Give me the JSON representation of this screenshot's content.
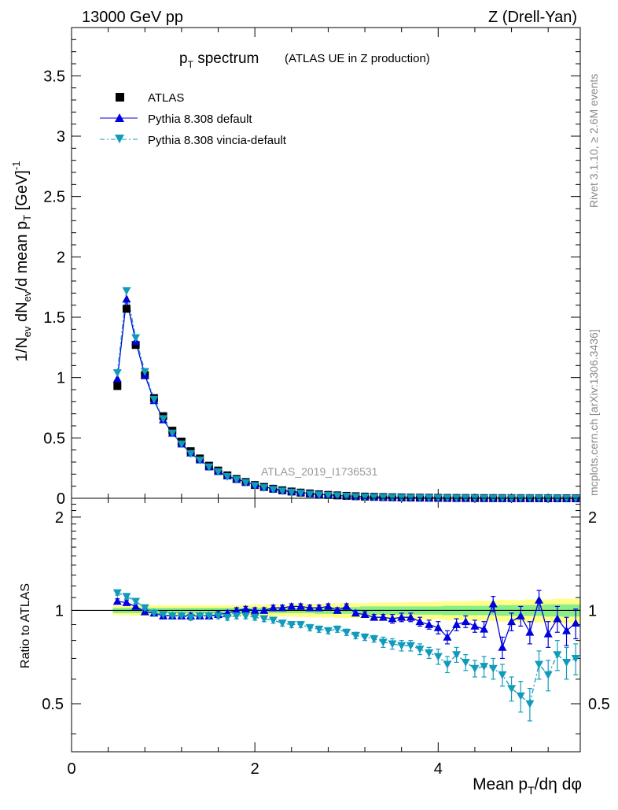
{
  "header": {
    "left": "13000 GeV pp",
    "right": "Z (Drell-Yan)"
  },
  "side": {
    "rivet": "Rivet 3.1.10, ≥ 2.6M events",
    "mcplots": "mcplots.cern.ch [arXiv:1306.3436]"
  },
  "colors": {
    "atlas": "#000000",
    "default": "#0000dd",
    "vincia": "#119bbb",
    "band_outer": "#ffff88",
    "band_inner": "#88ee88"
  },
  "chart_data": [
    {
      "type": "scatter",
      "title_main": "p",
      "title_sub": "T",
      "title_rest": " spectrum",
      "title_paren": "(ATLAS UE in Z production)",
      "watermark": "ATLAS_2019_I1736531",
      "ylabel": "1/N_ev dN_ev/d mean p_T [GeV]^-1",
      "ylim": [
        0,
        3.9
      ],
      "xlim": [
        0,
        5.55
      ],
      "yticks": [
        "0",
        "0.5",
        "1",
        "1.5",
        "2",
        "2.5",
        "3",
        "3.5"
      ],
      "legend": [
        {
          "label": "ATLAS",
          "marker": "square"
        },
        {
          "label": "Pythia 8.308 default",
          "marker": "triangle-up"
        },
        {
          "label": "Pythia 8.308 vincia-default",
          "marker": "triangle-down"
        }
      ],
      "x": [
        0.5,
        0.6,
        0.7,
        0.8,
        0.9,
        1.0,
        1.1,
        1.2,
        1.3,
        1.4,
        1.5,
        1.6,
        1.7,
        1.8,
        1.9,
        2.0,
        2.1,
        2.2,
        2.3,
        2.4,
        2.5,
        2.6,
        2.7,
        2.8,
        2.9,
        3.0,
        3.1,
        3.2,
        3.3,
        3.4,
        3.5,
        3.6,
        3.7,
        3.8,
        3.9,
        4.0,
        4.1,
        4.2,
        4.3,
        4.4,
        4.5,
        4.6,
        4.7,
        4.8,
        4.9,
        5.0,
        5.1,
        5.2,
        5.3,
        5.4,
        5.5
      ],
      "series": [
        {
          "name": "ATLAS",
          "values": [
            0.93,
            1.57,
            1.27,
            1.02,
            0.83,
            0.68,
            0.56,
            0.47,
            0.39,
            0.33,
            0.27,
            0.23,
            0.19,
            0.16,
            0.135,
            0.11,
            0.094,
            0.079,
            0.066,
            0.056,
            0.047,
            0.04,
            0.033,
            0.028,
            0.024,
            0.02,
            0.017,
            0.014,
            0.012,
            0.01,
            0.0085,
            0.0072,
            0.006,
            0.0051,
            0.0043,
            0.0036,
            0.003,
            0.0025,
            0.0021,
            0.0018,
            0.0015,
            0.0013,
            0.0011,
            0.0009,
            0.0008,
            0.0007,
            0.0006,
            0.0005,
            0.0004,
            0.00035,
            0.0003
          ]
        },
        {
          "name": "Pythia 8.308 default",
          "values": [
            0.99,
            1.65,
            1.3,
            1.02,
            0.81,
            0.65,
            0.54,
            0.45,
            0.375,
            0.318,
            0.26,
            0.222,
            0.185,
            0.16,
            0.135,
            0.11,
            0.094,
            0.08,
            0.067,
            0.057,
            0.048,
            0.04,
            0.033,
            0.028,
            0.024,
            0.019,
            0.016,
            0.013,
            0.011,
            0.0095,
            0.008,
            0.0068,
            0.0055,
            0.0047,
            0.0038,
            0.0033,
            0.0028,
            0.0023,
            0.0019,
            0.0016,
            0.0013,
            0.0014,
            0.0008,
            0.0008,
            0.0007,
            0.0006,
            0.0006,
            0.0004,
            0.0004,
            0.0003,
            0.0003
          ]
        },
        {
          "name": "Pythia 8.308 vincia-default",
          "values": [
            1.04,
            1.72,
            1.33,
            1.05,
            0.82,
            0.66,
            0.54,
            0.45,
            0.37,
            0.316,
            0.26,
            0.22,
            0.18,
            0.155,
            0.13,
            0.105,
            0.088,
            0.073,
            0.06,
            0.05,
            0.042,
            0.034,
            0.028,
            0.024,
            0.021,
            0.017,
            0.014,
            0.011,
            0.0096,
            0.008,
            0.0068,
            0.0056,
            0.0046,
            0.0038,
            0.0031,
            0.0026,
            0.0022,
            0.0017,
            0.0014,
            0.0011,
            0.0009,
            0.0009,
            0.0007,
            0.0005,
            0.0004,
            0.0004,
            0.0004,
            0.0003,
            0.0003,
            0.0002,
            0.0002
          ]
        }
      ]
    },
    {
      "type": "scatter",
      "ylabel": "Ratio to ATLAS",
      "xlabel": "Mean p_T/dη dφ",
      "ylim": [
        0.35,
        2.3
      ],
      "xlim": [
        0,
        5.55
      ],
      "xticks": [
        "0",
        "2",
        "4"
      ],
      "yticks_left": [
        "0.5",
        "1",
        "2"
      ],
      "yticks_right": [
        "0.5",
        "1",
        "2"
      ],
      "x": [
        0.5,
        0.6,
        0.7,
        0.8,
        0.9,
        1.0,
        1.1,
        1.2,
        1.3,
        1.4,
        1.5,
        1.6,
        1.7,
        1.8,
        1.9,
        2.0,
        2.1,
        2.2,
        2.3,
        2.4,
        2.5,
        2.6,
        2.7,
        2.8,
        2.9,
        3.0,
        3.1,
        3.2,
        3.3,
        3.4,
        3.5,
        3.6,
        3.7,
        3.8,
        3.9,
        4.0,
        4.1,
        4.2,
        4.3,
        4.4,
        4.5,
        4.6,
        4.7,
        4.8,
        4.9,
        5.0,
        5.1,
        5.2,
        5.3,
        5.4,
        5.5
      ],
      "band_inner_halfwidth": [
        0.02,
        0.02,
        0.02,
        0.02,
        0.02,
        0.02,
        0.02,
        0.02,
        0.02,
        0.02,
        0.02,
        0.02,
        0.02,
        0.02,
        0.02,
        0.02,
        0.02,
        0.02,
        0.02,
        0.02,
        0.02,
        0.02,
        0.025,
        0.025,
        0.025,
        0.025,
        0.025,
        0.03,
        0.03,
        0.03,
        0.03,
        0.03,
        0.03,
        0.03,
        0.03,
        0.03,
        0.035,
        0.035,
        0.035,
        0.035,
        0.035,
        0.035,
        0.04,
        0.04,
        0.04,
        0.04,
        0.04,
        0.045,
        0.045,
        0.045,
        0.045
      ],
      "band_outer_halfwidth": [
        0.035,
        0.035,
        0.04,
        0.04,
        0.04,
        0.04,
        0.04,
        0.04,
        0.04,
        0.04,
        0.04,
        0.04,
        0.04,
        0.04,
        0.04,
        0.045,
        0.045,
        0.045,
        0.045,
        0.045,
        0.05,
        0.05,
        0.05,
        0.05,
        0.055,
        0.055,
        0.055,
        0.055,
        0.06,
        0.06,
        0.06,
        0.06,
        0.065,
        0.065,
        0.065,
        0.065,
        0.07,
        0.07,
        0.07,
        0.075,
        0.075,
        0.075,
        0.08,
        0.08,
        0.08,
        0.085,
        0.085,
        0.085,
        0.09,
        0.09,
        0.09
      ],
      "series": [
        {
          "name": "Pythia 8.308 default",
          "values": [
            1.07,
            1.06,
            1.03,
            0.99,
            0.98,
            0.96,
            0.96,
            0.96,
            0.96,
            0.96,
            0.96,
            0.97,
            0.98,
            1.0,
            1.01,
            1.0,
            1.0,
            1.02,
            1.02,
            1.03,
            1.03,
            1.02,
            1.02,
            1.03,
            1.0,
            1.03,
            0.98,
            0.97,
            0.95,
            0.95,
            0.94,
            0.95,
            0.95,
            0.92,
            0.9,
            0.88,
            0.82,
            0.9,
            0.92,
            0.89,
            0.87,
            1.05,
            0.76,
            0.92,
            0.96,
            0.85,
            1.08,
            0.84,
            0.94,
            0.86,
            0.91
          ],
          "errors": [
            0.02,
            0.02,
            0.02,
            0.02,
            0.02,
            0.02,
            0.02,
            0.02,
            0.02,
            0.02,
            0.02,
            0.02,
            0.02,
            0.02,
            0.02,
            0.02,
            0.02,
            0.02,
            0.02,
            0.02,
            0.02,
            0.02,
            0.02,
            0.02,
            0.02,
            0.02,
            0.02,
            0.02,
            0.02,
            0.02,
            0.03,
            0.03,
            0.03,
            0.03,
            0.03,
            0.04,
            0.04,
            0.04,
            0.04,
            0.04,
            0.05,
            0.06,
            0.06,
            0.06,
            0.07,
            0.07,
            0.08,
            0.08,
            0.09,
            0.09,
            0.1
          ]
        },
        {
          "name": "Pythia 8.308 vincia-default",
          "values": [
            1.14,
            1.11,
            1.07,
            1.02,
            0.98,
            0.97,
            0.96,
            0.96,
            0.95,
            0.96,
            0.96,
            0.96,
            0.95,
            0.96,
            0.96,
            0.95,
            0.94,
            0.93,
            0.91,
            0.9,
            0.9,
            0.88,
            0.87,
            0.86,
            0.87,
            0.85,
            0.83,
            0.82,
            0.81,
            0.79,
            0.78,
            0.77,
            0.77,
            0.75,
            0.73,
            0.71,
            0.67,
            0.72,
            0.68,
            0.65,
            0.66,
            0.65,
            0.62,
            0.56,
            0.53,
            0.5,
            0.67,
            0.62,
            0.72,
            0.68,
            0.7
          ],
          "errors": [
            0.02,
            0.02,
            0.02,
            0.02,
            0.02,
            0.02,
            0.02,
            0.02,
            0.02,
            0.02,
            0.02,
            0.02,
            0.02,
            0.02,
            0.02,
            0.02,
            0.02,
            0.02,
            0.02,
            0.02,
            0.02,
            0.02,
            0.02,
            0.02,
            0.02,
            0.02,
            0.02,
            0.02,
            0.02,
            0.03,
            0.03,
            0.03,
            0.03,
            0.03,
            0.03,
            0.04,
            0.04,
            0.04,
            0.04,
            0.04,
            0.05,
            0.05,
            0.05,
            0.05,
            0.06,
            0.06,
            0.07,
            0.07,
            0.08,
            0.08,
            0.08
          ]
        }
      ]
    }
  ]
}
